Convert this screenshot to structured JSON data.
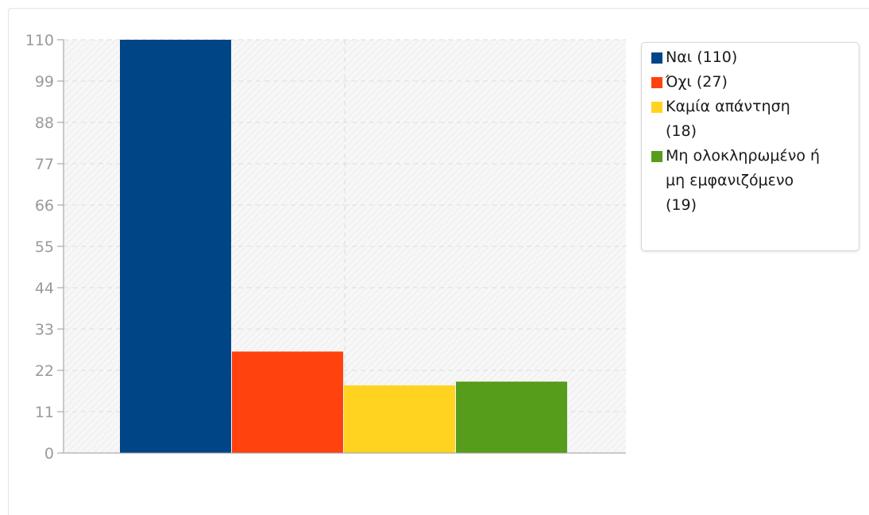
{
  "chart_data": {
    "type": "bar",
    "title": "",
    "xlabel": "",
    "ylabel": "",
    "ylim": [
      0,
      110
    ],
    "yticks": [
      0,
      11,
      22,
      33,
      44,
      55,
      66,
      77,
      88,
      99,
      110
    ],
    "grid": true,
    "legend_position": "right",
    "categories": [
      "Ναι (110)",
      "Όχι (27)",
      "Καμία απάντηση (18)",
      "Μη ολοκληρωμένο ή μη εμφανιζόμενο (19)"
    ],
    "values": [
      110,
      27,
      18,
      19
    ],
    "colors": [
      "#004586",
      "#ff420e",
      "#ffd320",
      "#579d1c"
    ]
  }
}
